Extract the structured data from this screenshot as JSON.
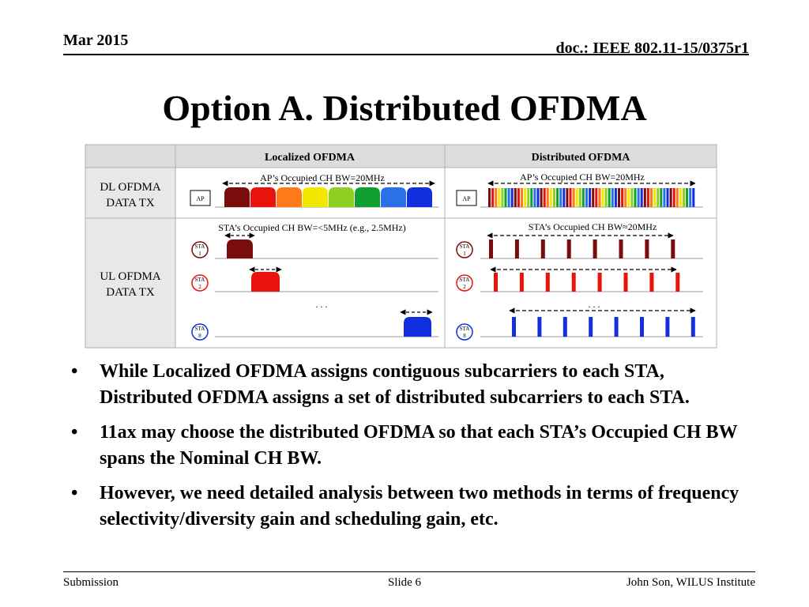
{
  "header": {
    "date": "Mar 2015",
    "doc": "doc.: IEEE 802.11-15/0375r1"
  },
  "title": "Option A. Distributed OFDMA",
  "table": {
    "col_localized": "Localized OFDMA",
    "col_distributed": "Distributed OFDMA",
    "row_dl": [
      "DL OFDMA",
      "DATA TX"
    ],
    "row_ul": [
      "UL OFDMA",
      "DATA TX"
    ],
    "dl_localized_caption": "AP’s Occupied CH BW=20MHz",
    "dl_distributed_caption": "AP’s Occupied CH BW=20MHz",
    "ul_localized_caption": "STA’s Occupied CH BW=<5MHz (e.g., 2.5MHz)",
    "ul_distributed_caption": "STA’s Occupied CH BW≈20MHz",
    "ap_label": "AP",
    "sta_label": "STA",
    "sta_numbers": [
      "1",
      "2",
      "8"
    ],
    "ellipsis": ". . ."
  },
  "colors": {
    "sta1": "#7b0c0c",
    "sta2": "#e8140c",
    "sta8": "#1030e0",
    "subchannels": [
      "#7b0c0c",
      "#e8140c",
      "#ff7a1a",
      "#f2e800",
      "#90d020",
      "#10a030",
      "#2a70e8",
      "#1030e0"
    ],
    "grid_border": "#b0b0b0",
    "header_fill": "#dcdcdc",
    "row_label_fill": "#e8e8e8"
  },
  "bullets": [
    "While Localized OFDMA assigns contiguous subcarriers to each STA, Distributed OFDMA assigns a set of distributed subcarriers to each STA.",
    "11ax may choose the distributed OFDMA so that each STA’s Occupied CH BW spans the Nominal CH BW.",
    "However, we need detailed analysis between two methods in terms of frequency selectivity/diversity gain and scheduling gain, etc."
  ],
  "bullet_symbol": "•",
  "footer": {
    "left": "Submission",
    "center": "Slide 6",
    "right": "John Son, WILUS Institute"
  }
}
